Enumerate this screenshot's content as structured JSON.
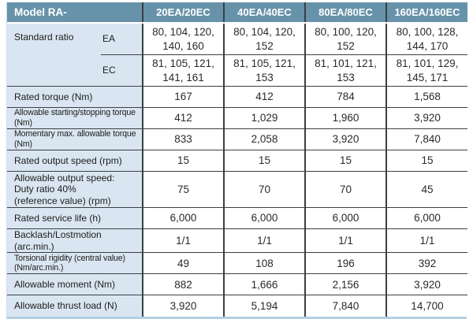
{
  "colors": {
    "header_bg": "#6793aa",
    "header_text": "#ffffff",
    "label_bg": "#d9e6f1",
    "border_dark": "#3a3f44",
    "outer_border": "#b3d0e2"
  },
  "table": {
    "header": {
      "model_label": "Model RA-",
      "columns": [
        "20EA/20EC",
        "40EA/40EC",
        "80EA/80EC",
        "160EA/160EC"
      ]
    },
    "ratio_group": {
      "label": "Standard ratio",
      "rows": [
        {
          "sub": "EA",
          "values": [
            "80, 104, 120, 140, 160",
            "80, 104, 120, 152",
            "80, 100, 120, 152",
            "80, 100, 128, 144, 170"
          ]
        },
        {
          "sub": "EC",
          "values": [
            "81, 105, 121, 141, 161",
            "81, 105, 121, 153",
            "81, 101, 121, 153",
            "81, 101, 129, 145, 171"
          ]
        }
      ]
    },
    "rows": [
      {
        "label": "Rated torque (Nm)",
        "condensed": false,
        "tall": false,
        "values": [
          "167",
          "412",
          "784",
          "1,568"
        ]
      },
      {
        "label": "Allowable starting/stopping torque (Nm)",
        "condensed": true,
        "tall": false,
        "values": [
          "412",
          "1,029",
          "1,960",
          "3,920"
        ]
      },
      {
        "label": "Momentary max. allowable torque (Nm)",
        "condensed": true,
        "tall": false,
        "values": [
          "833",
          "2,058",
          "3,920",
          "7,840"
        ]
      },
      {
        "label": "Rated output speed (rpm)",
        "condensed": false,
        "tall": false,
        "values": [
          "15",
          "15",
          "15",
          "15"
        ]
      },
      {
        "label": "Allowable output speed:\nDuty ratio 40%\n(reference value) (rpm)",
        "condensed": false,
        "tall": true,
        "values": [
          "75",
          "70",
          "70",
          "45"
        ]
      },
      {
        "label": "Rated service life (h)",
        "condensed": false,
        "tall": false,
        "values": [
          "6,000",
          "6,000",
          "6,000",
          "6,000"
        ]
      },
      {
        "label": "Backlash/Lostmotion (arc.min.)",
        "condensed": false,
        "tall": false,
        "values": [
          "1/1",
          "1/1",
          "1/1",
          "1/1"
        ]
      },
      {
        "label": "Torsional rigidity (central value) (Nm/arc.min.)",
        "condensed": true,
        "tall": false,
        "values": [
          "49",
          "108",
          "196",
          "392"
        ]
      },
      {
        "label": "Allowable moment (Nm)",
        "condensed": false,
        "tall": false,
        "values": [
          "882",
          "1,666",
          "2,156",
          "3,920"
        ]
      },
      {
        "label": "Allowable thrust load (N)",
        "condensed": false,
        "tall": false,
        "values": [
          "3,920",
          "5,194",
          "7,840",
          "14,700"
        ]
      }
    ]
  }
}
